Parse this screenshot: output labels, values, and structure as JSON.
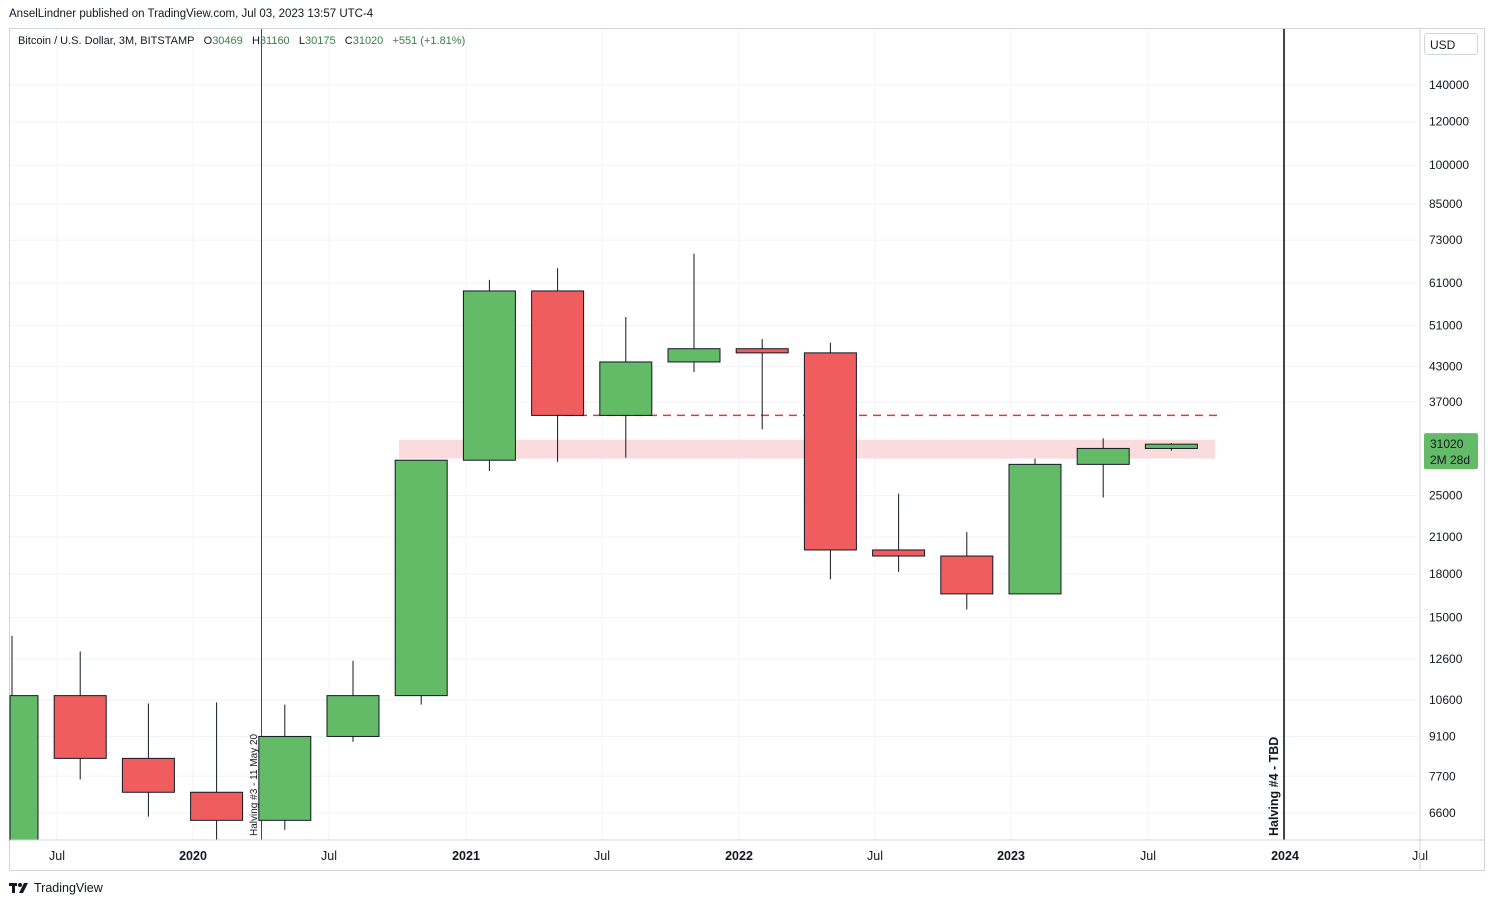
{
  "header": {
    "published_line": "AnselLindner published on TradingView.com, Jul 03, 2023 13:57 UTC-4"
  },
  "legend": {
    "symbol": "Bitcoin / U.S. Dollar, 3M, BITSTAMP",
    "o_label": "O",
    "o_value": "30469",
    "h_label": "H",
    "h_value": "31160",
    "l_label": "L",
    "l_value": "30175",
    "c_label": "C",
    "c_value": "31020",
    "change": "+551 (+1.81%)"
  },
  "price_axis": {
    "currency": "USD",
    "current_price": "31020",
    "countdown": "2M 28d"
  },
  "footer": {
    "brand": "TradingView"
  },
  "colors": {
    "up": "#63bb68",
    "down": "#f05d5e",
    "zone": "#f9d6d9",
    "dashed_line": "#e8353b",
    "price_tag": "#63bb68"
  },
  "chart_data": {
    "type": "candlestick",
    "timeframe": "3M",
    "scale": "log",
    "ylim": [
      5600,
      185000
    ],
    "y_ticks": [
      6600,
      7700,
      9100,
      10600,
      12600,
      15000,
      18000,
      21000,
      25000,
      31020,
      37000,
      43000,
      51000,
      61000,
      73000,
      85000,
      100000,
      120000,
      140000
    ],
    "x_ticks": [
      "Jul",
      "2020",
      "Jul",
      "2021",
      "Jul",
      "2022",
      "Jul",
      "2023",
      "Jul",
      "2024",
      "Jul"
    ],
    "candles": [
      {
        "period": "2019 Q2",
        "open": 4100,
        "high": 13880,
        "low": 4060,
        "close": 10800
      },
      {
        "period": "2019 Q3",
        "open": 10800,
        "high": 13000,
        "low": 7600,
        "close": 8300
      },
      {
        "period": "2019 Q4",
        "open": 8300,
        "high": 10450,
        "low": 6500,
        "close": 7200
      },
      {
        "period": "2020 Q1",
        "open": 7200,
        "high": 10500,
        "low": 3850,
        "close": 6400
      },
      {
        "period": "2020 Q2",
        "open": 6400,
        "high": 10400,
        "low": 6150,
        "close": 9100
      },
      {
        "period": "2020 Q3",
        "open": 9100,
        "high": 12500,
        "low": 8900,
        "close": 10800
      },
      {
        "period": "2020 Q4",
        "open": 10800,
        "high": 29000,
        "low": 10400,
        "close": 29000
      },
      {
        "period": "2021 Q1",
        "open": 29000,
        "high": 61800,
        "low": 27700,
        "close": 59000
      },
      {
        "period": "2021 Q2",
        "open": 59000,
        "high": 64900,
        "low": 28800,
        "close": 35000
      },
      {
        "period": "2021 Q3",
        "open": 35000,
        "high": 52900,
        "low": 29300,
        "close": 43800
      },
      {
        "period": "2021 Q4",
        "open": 43800,
        "high": 69000,
        "low": 42000,
        "close": 46300
      },
      {
        "period": "2022 Q1",
        "open": 46300,
        "high": 48200,
        "low": 33000,
        "close": 45500
      },
      {
        "period": "2022 Q2",
        "open": 45500,
        "high": 47500,
        "low": 17600,
        "close": 19900
      },
      {
        "period": "2022 Q3",
        "open": 19900,
        "high": 25200,
        "low": 18150,
        "close": 19400
      },
      {
        "period": "2022 Q4",
        "open": 19400,
        "high": 21450,
        "low": 15500,
        "close": 16550
      },
      {
        "period": "2023 Q1",
        "open": 16550,
        "high": 29200,
        "low": 16550,
        "close": 28500
      },
      {
        "period": "2023 Q2",
        "open": 28500,
        "high": 31800,
        "low": 24800,
        "close": 30469
      },
      {
        "period": "2023 Q3",
        "open": 30469,
        "high": 31160,
        "low": 30175,
        "close": 31020
      }
    ],
    "annotations": {
      "halving_3_label": "Halving #3 - 11 May 20",
      "halving_4_label": "Halving #4 - TBD",
      "dashed_level": 35000,
      "zone_low": 29200,
      "zone_high": 31600
    }
  }
}
